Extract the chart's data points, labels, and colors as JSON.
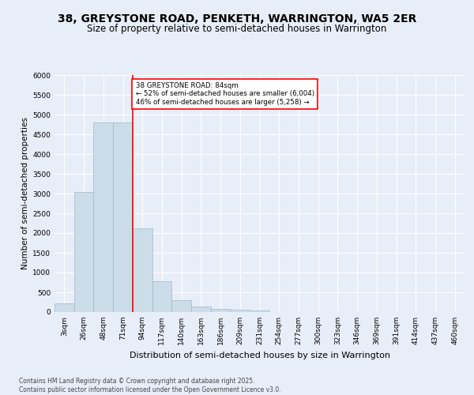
{
  "title1": "38, GREYSTONE ROAD, PENKETH, WARRINGTON, WA5 2ER",
  "title2": "Size of property relative to semi-detached houses in Warrington",
  "xlabel": "Distribution of semi-detached houses by size in Warrington",
  "ylabel": "Number of semi-detached properties",
  "bin_labels": [
    "3sqm",
    "26sqm",
    "48sqm",
    "71sqm",
    "94sqm",
    "117sqm",
    "140sqm",
    "163sqm",
    "186sqm",
    "209sqm",
    "231sqm",
    "254sqm",
    "277sqm",
    "300sqm",
    "323sqm",
    "346sqm",
    "369sqm",
    "391sqm",
    "414sqm",
    "437sqm",
    "460sqm"
  ],
  "bar_values": [
    230,
    3050,
    4800,
    4800,
    2130,
    780,
    310,
    140,
    80,
    55,
    40,
    0,
    0,
    0,
    0,
    0,
    0,
    0,
    0,
    0,
    0
  ],
  "bar_color": "#ccdce8",
  "bar_edgecolor": "#a0b8cc",
  "vline_color": "red",
  "annotation_text": "38 GREYSTONE ROAD: 84sqm\n← 52% of semi-detached houses are smaller (6,004)\n46% of semi-detached houses are larger (5,258) →",
  "ylim": [
    0,
    6000
  ],
  "yticks": [
    0,
    500,
    1000,
    1500,
    2000,
    2500,
    3000,
    3500,
    4000,
    4500,
    5000,
    5500,
    6000
  ],
  "footer": "Contains HM Land Registry data © Crown copyright and database right 2025.\nContains public sector information licensed under the Open Government Licence v3.0.",
  "bg_color": "#e8eef8",
  "plot_bg_color": "#e8eef8",
  "title1_fontsize": 10,
  "title2_fontsize": 8.5,
  "ylabel_fontsize": 7.5,
  "xlabel_fontsize": 8,
  "tick_fontsize": 6.5,
  "footer_fontsize": 5.5
}
